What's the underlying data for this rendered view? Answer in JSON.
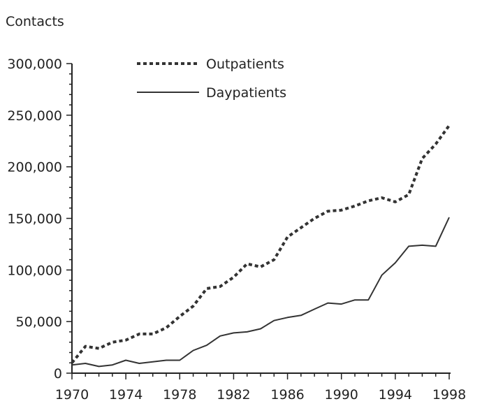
{
  "chart_data": {
    "type": "line",
    "title": "",
    "ylabel": "Contacts",
    "xlabel": "",
    "xlim": [
      1970,
      1998
    ],
    "ylim": [
      0,
      300000
    ],
    "x_ticks": [
      1970,
      1974,
      1978,
      1982,
      1986,
      1990,
      1994,
      1998
    ],
    "x_tick_labels": [
      "1970",
      "1974",
      "1978",
      "1982",
      "1986",
      "1990",
      "1994",
      "1998"
    ],
    "y_ticks": [
      0,
      50000,
      100000,
      150000,
      200000,
      250000,
      300000
    ],
    "y_tick_labels": [
      "0",
      "50,000",
      "100,000",
      "150,000",
      "200,000",
      "250,000",
      "300,000"
    ],
    "grid": false,
    "legend_position": "top-left",
    "x": [
      1970,
      1971,
      1972,
      1973,
      1974,
      1975,
      1976,
      1977,
      1978,
      1979,
      1980,
      1981,
      1982,
      1983,
      1984,
      1985,
      1986,
      1987,
      1988,
      1989,
      1990,
      1991,
      1992,
      1993,
      1994,
      1995,
      1996,
      1997,
      1998
    ],
    "series": [
      {
        "name": "Outpatients",
        "style": "dotted",
        "color": "#333333",
        "values": [
          10000,
          26000,
          24000,
          30000,
          32000,
          38000,
          38000,
          44000,
          55000,
          65000,
          82000,
          84000,
          93000,
          106000,
          103000,
          110000,
          132000,
          141000,
          150000,
          157000,
          158000,
          162000,
          167000,
          170000,
          166000,
          173000,
          208000,
          222000,
          240000
        ]
      },
      {
        "name": "Daypatients",
        "style": "solid",
        "color": "#333333",
        "values": [
          8000,
          9500,
          6500,
          8000,
          12500,
          9500,
          11000,
          12500,
          12500,
          22000,
          27000,
          36000,
          39000,
          40000,
          43000,
          51000,
          54000,
          56000,
          62000,
          68000,
          67000,
          71000,
          71000,
          95000,
          107000,
          123000,
          124000,
          123000,
          151000
        ]
      }
    ]
  }
}
